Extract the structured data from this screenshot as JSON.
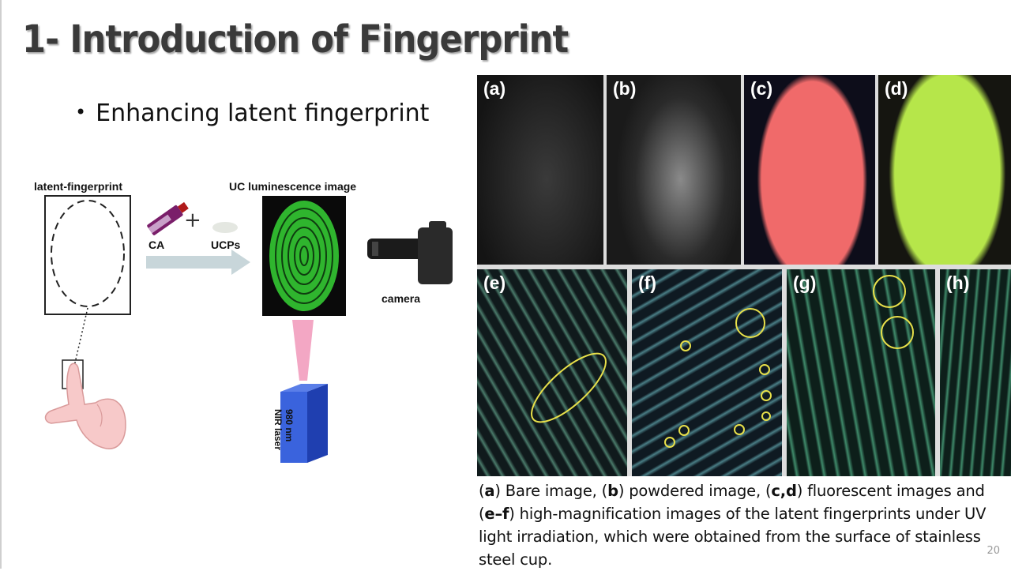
{
  "title": "1- Introduction of Fingerprint",
  "bullet": "Enhancing latent fingerprint",
  "diagram": {
    "latent_label": "latent-fingerprint",
    "uc_label": "UC luminescence image",
    "ca_label": "CA",
    "ucp_label": "UCPs",
    "camera_label": "camera",
    "laser_line1": "980 nm",
    "laser_line2": "NIR laser",
    "plus": "+"
  },
  "panels": {
    "a": "(a)",
    "b": "(b)",
    "c": "(c)",
    "d": "(d)",
    "e": "(e)",
    "f": "(f)",
    "g": "(g)",
    "h": "(h)"
  },
  "caption": {
    "p1": "(",
    "a": "a",
    "p2": ") Bare image, (",
    "b": "b",
    "p3": ") powdered image, (",
    "cd": "c,d",
    "p4": ") fluorescent images and",
    "p5": "(",
    "ef": "e–f",
    "p6": ") high-magnification images of the latent fingerprints under UV light irradiation, which were obtained from the surface of stainless steel cup."
  },
  "page_number": "20",
  "colors": {
    "fluorescent_red": "#f06a6a",
    "fluorescent_green": "#b6e64a",
    "uc_green": "#3fd23a",
    "annotation_yellow": "#e8e04a"
  }
}
